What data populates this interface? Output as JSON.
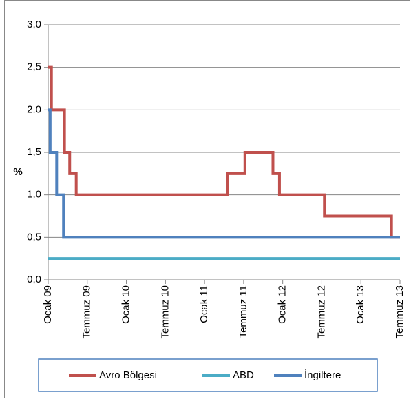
{
  "chart_data": {
    "type": "step",
    "ylabel": "%",
    "xlim": [
      0,
      54
    ],
    "xticks": [
      {
        "value": 0,
        "label": "Ocak 09"
      },
      {
        "value": 6,
        "label": "Temmuz 09"
      },
      {
        "value": 12,
        "label": "Ocak 10"
      },
      {
        "value": 18,
        "label": "Temmuz 10"
      },
      {
        "value": 24,
        "label": "Ocak 11"
      },
      {
        "value": 30,
        "label": "Temmuz 11"
      },
      {
        "value": 36,
        "label": "Ocak 12"
      },
      {
        "value": 42,
        "label": "Temmuz 12"
      },
      {
        "value": 48,
        "label": "Ocak 13"
      },
      {
        "value": 54,
        "label": "Temmuz 13"
      }
    ],
    "ylim": [
      0,
      3
    ],
    "yticks": [
      {
        "value": 0,
        "label": "0,0"
      },
      {
        "value": 0.5,
        "label": "0,5"
      },
      {
        "value": 1,
        "label": "1,0"
      },
      {
        "value": 1.5,
        "label": "1,5"
      },
      {
        "value": 2,
        "label": "2.0"
      },
      {
        "value": 2.5,
        "label": "2,5"
      },
      {
        "value": 3,
        "label": "3,0"
      }
    ],
    "grid": true,
    "legend": "bottom",
    "series": [
      {
        "name": "Avro Bölgesi",
        "color": "#c0504d",
        "x": [
          0,
          0.5,
          2.5,
          3.3,
          4.3,
          27.5,
          30.2,
          34.5,
          35.5,
          42.4,
          52.7,
          54
        ],
        "values": [
          2.5,
          2.0,
          1.5,
          1.25,
          1.0,
          1.25,
          1.5,
          1.25,
          1.0,
          0.75,
          0.5,
          0.5
        ]
      },
      {
        "name": "ABD",
        "color": "#4bacc6",
        "x": [
          0,
          54
        ],
        "values": [
          0.25,
          0.25
        ]
      },
      {
        "name": "İngiltere",
        "color": "#4f81bd",
        "x": [
          0,
          0.3,
          1.3,
          2.35,
          54
        ],
        "values": [
          2.0,
          1.5,
          1.0,
          0.5,
          0.5
        ]
      }
    ]
  }
}
